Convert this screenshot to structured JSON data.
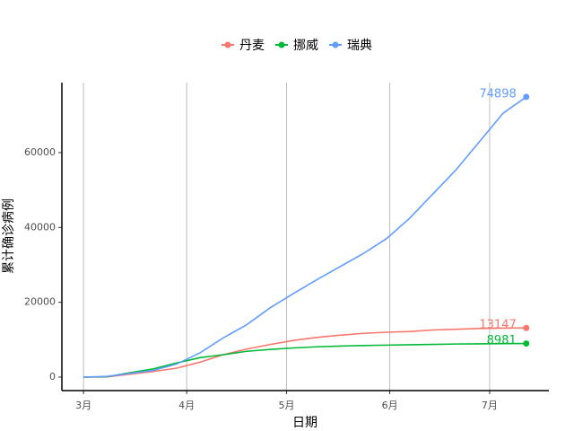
{
  "chart_data": {
    "type": "line",
    "x_label": "日期",
    "y_label": "累计确诊病例",
    "x": [
      0,
      7,
      14,
      21,
      28,
      35,
      42,
      49,
      56,
      63,
      70,
      77,
      84,
      91,
      98,
      105,
      112,
      119,
      126,
      133
    ],
    "series": [
      {
        "name": "丹麦",
        "color": "#F8766D",
        "values": [
          0,
          50,
          800,
          1500,
          2400,
          4000,
          6000,
          7500,
          8700,
          9800,
          10600,
          11200,
          11700,
          12000,
          12200,
          12600,
          12800,
          13000,
          13100,
          13147
        ]
      },
      {
        "name": "挪威",
        "color": "#00BA38",
        "values": [
          0,
          100,
          1200,
          2200,
          3800,
          5200,
          6000,
          6900,
          7400,
          7800,
          8100,
          8300,
          8450,
          8550,
          8650,
          8750,
          8850,
          8900,
          8950,
          8981
        ]
      },
      {
        "name": "瑞典",
        "color": "#619CFF",
        "values": [
          0,
          200,
          1000,
          1800,
          3500,
          6500,
          10500,
          14000,
          18500,
          22300,
          26000,
          29500,
          33000,
          37000,
          42500,
          49000,
          55500,
          63000,
          70500,
          74898
        ]
      }
    ],
    "xlim": [
      -6.5,
      139.8
    ],
    "xticks": [
      {
        "value": 0,
        "label": "3月"
      },
      {
        "value": 31,
        "label": "4月"
      },
      {
        "value": 61,
        "label": "5月"
      },
      {
        "value": 92,
        "label": "6月"
      },
      {
        "value": 122,
        "label": "7月"
      }
    ],
    "ylim": [
      -3600,
      78720
    ],
    "yticks": [
      0,
      20000,
      40000,
      60000
    ],
    "grid": "x",
    "legend": "top"
  }
}
